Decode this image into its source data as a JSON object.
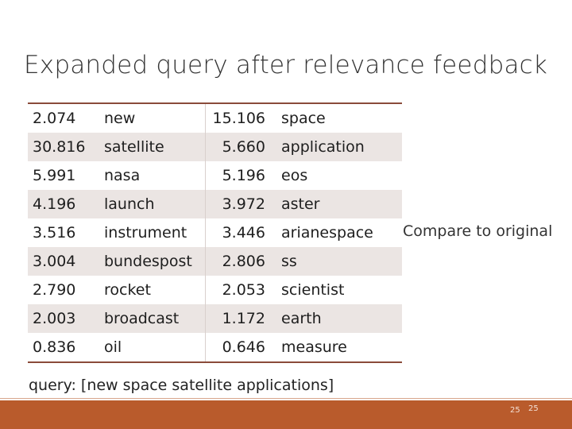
{
  "slide": {
    "title": "Expanded query after relevance feedback",
    "compare_label": "Compare to original",
    "query_text": "query: [new space satellite applications]",
    "page_number": "25",
    "page_number_right": "25"
  },
  "table": {
    "rows": [
      {
        "w1": "2.074",
        "t1": "new",
        "w2": "15.106",
        "t2": "space"
      },
      {
        "w1": "30.816",
        "t1": "satellite",
        "w2": "5.660",
        "t2": "application"
      },
      {
        "w1": "5.991",
        "t1": "nasa",
        "w2": "5.196",
        "t2": "eos"
      },
      {
        "w1": "4.196",
        "t1": "launch",
        "w2": "3.972",
        "t2": "aster"
      },
      {
        "w1": "3.516",
        "t1": "instrument",
        "w2": "3.446",
        "t2": "arianespace"
      },
      {
        "w1": "3.004",
        "t1": "bundespost",
        "w2": "2.806",
        "t2": "ss"
      },
      {
        "w1": "2.790",
        "t1": "rocket",
        "w2": "2.053",
        "t2": "scientist"
      },
      {
        "w1": "2.003",
        "t1": "broadcast",
        "w2": "1.172",
        "t2": "earth"
      },
      {
        "w1": "0.836",
        "t1": "oil",
        "w2": "0.646",
        "t2": "measure"
      }
    ]
  },
  "colors": {
    "footer": "#b95b2c",
    "table_rule": "#8a4b3a",
    "band": "#ebe5e3"
  }
}
